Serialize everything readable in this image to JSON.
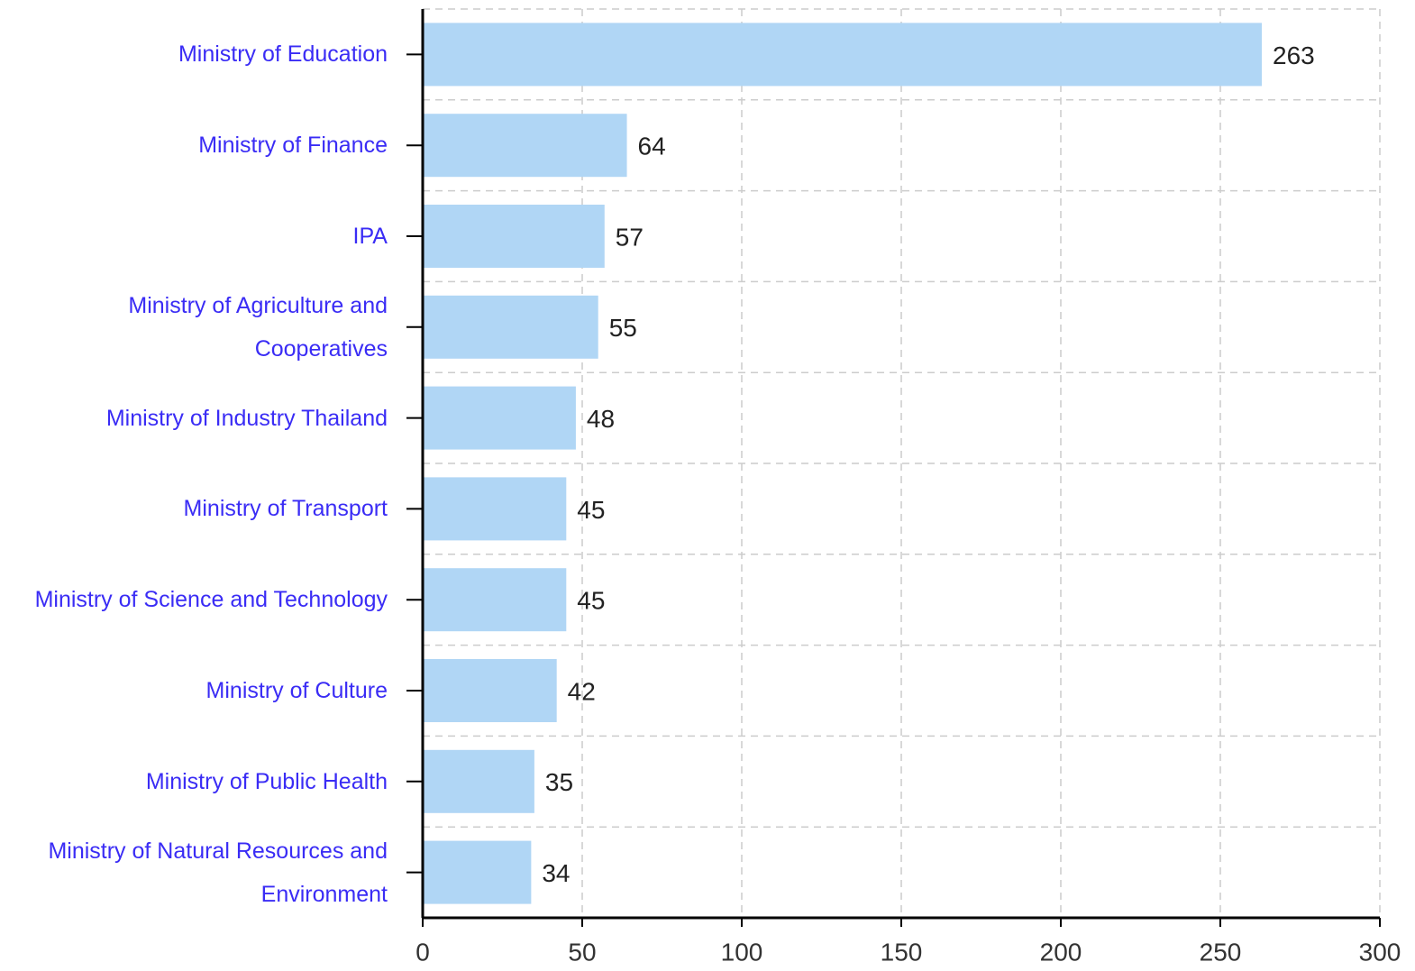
{
  "chart_data": {
    "type": "hbar",
    "categories": [
      "Ministry of Education",
      "Ministry of Finance",
      "IPA",
      "Ministry of Agriculture and Cooperatives",
      "Ministry of Industry Thailand",
      "Ministry of Transport",
      "Ministry of Science and Technology",
      "Ministry of Culture",
      "Ministry of Public Health",
      "Ministry of Natural Resources and Environment"
    ],
    "values": [
      263,
      64,
      57,
      55,
      48,
      45,
      45,
      42,
      35,
      34
    ],
    "color": "#b0d6f5",
    "xlim": [
      0,
      300
    ],
    "xticks": [
      0,
      50,
      100,
      150,
      200,
      250,
      300
    ],
    "grid": true
  }
}
